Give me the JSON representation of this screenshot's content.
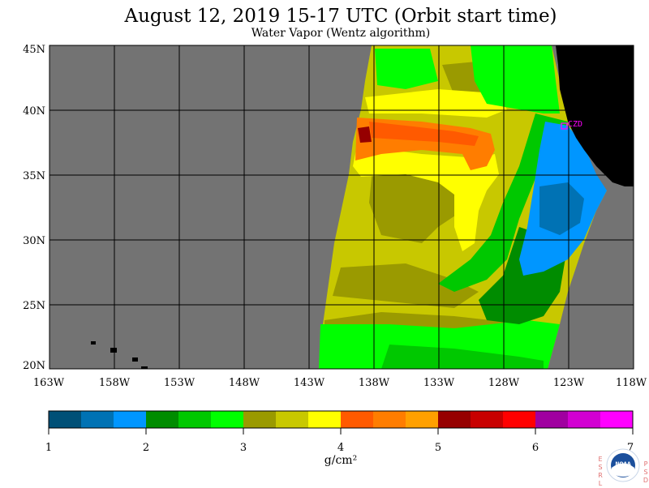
{
  "title": "August 12, 2019  15-17 UTC  (Orbit start time)",
  "subtitle": "Water Vapor (Wentz algorithm)",
  "map": {
    "lat_labels": [
      "45N",
      "40N",
      "35N",
      "30N",
      "25N",
      "20N"
    ],
    "lon_labels": [
      "163W",
      "158W",
      "153W",
      "148W",
      "143W",
      "138W",
      "133W",
      "128W",
      "123W",
      "118W"
    ],
    "station_label": "CZD",
    "colors": {
      "no_data": "#737373",
      "land": "#000000",
      "station": "#ff00ff"
    }
  },
  "colorbar": {
    "ticks": [
      "1",
      "2",
      "3",
      "4",
      "5",
      "6",
      "7"
    ],
    "unit": "g/cm²",
    "colors": [
      "#005077",
      "#0072b4",
      "#0096ff",
      "#008c00",
      "#00c800",
      "#00ff00",
      "#9a9a00",
      "#c8c800",
      "#ffff00",
      "#ff5a00",
      "#ff7d00",
      "#ffa000",
      "#960000",
      "#c80000",
      "#ff0000",
      "#a000a0",
      "#d200d2",
      "#ff00ff"
    ]
  },
  "logo": {
    "left_letters": [
      "E",
      "S",
      "R",
      "L"
    ],
    "right_letters": [
      "P",
      "S",
      "D"
    ],
    "center_text": "NOAA"
  }
}
